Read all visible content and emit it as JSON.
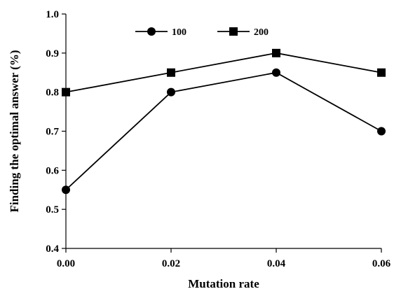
{
  "chart_data": {
    "type": "line",
    "x": [
      0.0,
      0.02,
      0.04,
      0.06
    ],
    "x_tick_labels": [
      "0.00",
      "0.02",
      "0.04",
      "0.06"
    ],
    "y_tick_labels": [
      "0.4",
      "0.5",
      "0.6",
      "0.7",
      "0.8",
      "0.9",
      "1.0"
    ],
    "xlim": [
      0,
      0.06
    ],
    "ylim": [
      0.4,
      1.0
    ],
    "xlabel": "Mutation rate",
    "ylabel": "Finding the optimal answer  (%)",
    "title": "",
    "grid": false,
    "legend_position": "top-center",
    "series": [
      {
        "name": "100",
        "marker": "circle",
        "values": [
          0.55,
          0.8,
          0.85,
          0.7
        ]
      },
      {
        "name": "200",
        "marker": "square",
        "values": [
          0.8,
          0.85,
          0.9,
          0.85
        ]
      }
    ],
    "colors": {
      "line": "#000000",
      "marker": "#000000"
    }
  }
}
